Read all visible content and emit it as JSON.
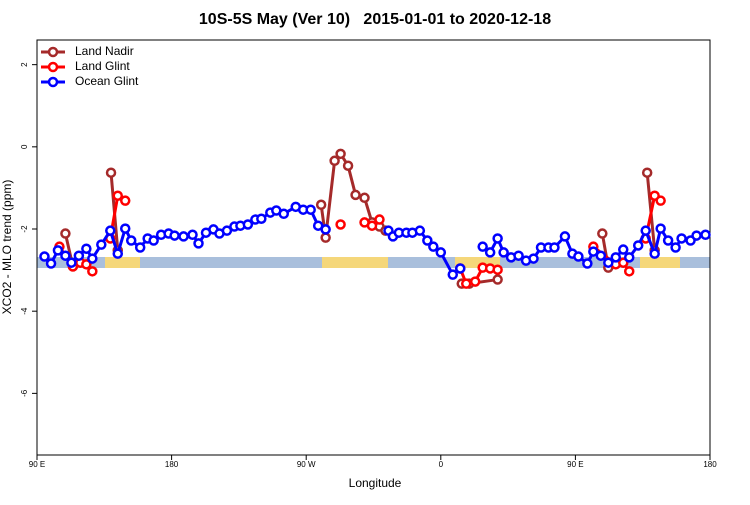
{
  "chart_data": {
    "type": "line",
    "title": "10S-5S May (Ver 10)   2015-01-01 to 2020-12-18",
    "xlabel": "Longitude",
    "ylabel": "XCO2 - MLO trend (ppm)",
    "xlim": [
      90,
      540
    ],
    "ylim": [
      -7.5,
      2.6
    ],
    "xticks": [
      {
        "value": 90,
        "label": "90 E"
      },
      180,
      {
        "value": 270,
        "label": "90 W"
      },
      {
        "value": 360,
        "label": "0"
      },
      {
        "value": 450,
        "label": "90 E"
      },
      {
        "value": 540,
        "label": "180"
      }
    ],
    "yticks": [
      -6,
      -4,
      -2,
      0,
      2
    ],
    "legend": "top-left",
    "series": [
      {
        "name": "Land Nadir",
        "color": "#a52a2a",
        "x": [
          109,
          114,
          null,
          139.5,
          144,
          null,
          280,
          283,
          289,
          293,
          298,
          303,
          309,
          314,
          319,
          323,
          null,
          374,
          379,
          398,
          null,
          468,
          472,
          null,
          498,
          503
        ],
        "values": [
          -2.11,
          -2.91,
          null,
          -0.63,
          -2.52,
          null,
          -1.41,
          -2.21,
          -0.34,
          -0.17,
          -0.46,
          -1.17,
          -1.24,
          -1.84,
          -1.94,
          -2.04,
          null,
          -3.33,
          -3.33,
          -3.23,
          null,
          -2.11,
          -2.94,
          null,
          -0.63,
          -2.52
        ]
      },
      {
        "name": "Land Glint",
        "color": "#ff0000",
        "x": [
          105,
          114,
          119,
          123,
          127,
          null,
          139,
          144,
          149,
          null,
          293,
          null,
          309,
          314,
          319,
          null,
          373,
          377,
          383,
          388,
          393,
          398,
          null,
          462,
          477,
          482,
          486,
          null,
          497,
          503,
          507
        ],
        "values": [
          -2.43,
          -2.91,
          -2.82,
          -2.86,
          -3.03,
          null,
          -2.23,
          -1.19,
          -1.31,
          null,
          -1.89,
          null,
          -1.84,
          -1.92,
          -1.77,
          null,
          -2.96,
          -3.33,
          -3.28,
          -2.94,
          -2.96,
          -2.99,
          null,
          -2.43,
          -2.86,
          -2.82,
          -3.03,
          null,
          -2.23,
          -1.19,
          -1.31
        ]
      },
      {
        "name": "Ocean Glint",
        "color": "#0000ff",
        "x": [
          95,
          99.4,
          104,
          109,
          113,
          118,
          123,
          127,
          133,
          139,
          144,
          149,
          153,
          159,
          164,
          168,
          173,
          178,
          182,
          188,
          194,
          198,
          203,
          208,
          212,
          217,
          222,
          226,
          231,
          236,
          240,
          246,
          250,
          255,
          263,
          268,
          273,
          278,
          283,
          null,
          325,
          328,
          332,
          337,
          341,
          346,
          351,
          355,
          360,
          368,
          373,
          null,
          388,
          393,
          398,
          402,
          407,
          412,
          417,
          422,
          427,
          432,
          436,
          443,
          448,
          452,
          458,
          462,
          467,
          472,
          477,
          482,
          486,
          492,
          497,
          503,
          507,
          512,
          517,
          521,
          527,
          531,
          537
        ],
        "values": [
          -2.67,
          -2.84,
          -2.52,
          -2.65,
          -2.82,
          -2.65,
          -2.48,
          -2.72,
          -2.38,
          -2.04,
          -2.6,
          -1.99,
          -2.28,
          -2.45,
          -2.23,
          -2.28,
          -2.14,
          -2.11,
          -2.16,
          -2.18,
          -2.14,
          -2.35,
          -2.09,
          -2.01,
          -2.11,
          -2.04,
          -1.94,
          -1.92,
          -1.89,
          -1.77,
          -1.75,
          -1.6,
          -1.55,
          -1.63,
          -1.46,
          -1.53,
          -1.53,
          -1.92,
          -2.01,
          null,
          -2.04,
          -2.18,
          -2.09,
          -2.09,
          -2.09,
          -2.04,
          -2.28,
          -2.43,
          -2.57,
          -3.11,
          -2.96,
          null,
          -2.43,
          -2.57,
          -2.23,
          -2.57,
          -2.69,
          -2.65,
          -2.77,
          -2.72,
          -2.45,
          -2.45,
          -2.45,
          -2.18,
          -2.6,
          -2.67,
          -2.84,
          -2.55,
          -2.65,
          -2.82,
          -2.69,
          -2.5,
          -2.69,
          -2.4,
          -2.04,
          -2.6,
          -1.99,
          -2.28,
          -2.45,
          -2.23,
          -2.28,
          -2.16,
          -2.14
        ]
      }
    ]
  }
}
